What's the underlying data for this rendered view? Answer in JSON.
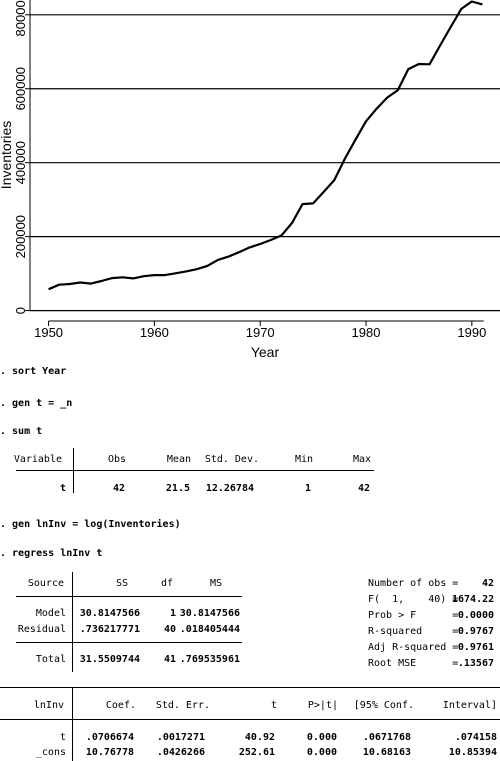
{
  "chart_data": {
    "type": "line",
    "xlabel": "Year",
    "ylabel": "Inventories",
    "xlim": [
      1949,
      1992
    ],
    "ylim": [
      -20000,
      840000
    ],
    "xticks": [
      "1950",
      "1960",
      "1970",
      "1980",
      "1990"
    ],
    "yticks": [
      "0",
      "200000",
      "400000",
      "600000",
      "800000"
    ],
    "grid": "horizontal",
    "x": [
      1950,
      1951,
      1952,
      1953,
      1954,
      1955,
      1956,
      1957,
      1958,
      1959,
      1960,
      1961,
      1962,
      1963,
      1964,
      1965,
      1966,
      1967,
      1968,
      1969,
      1970,
      1971,
      1972,
      1973,
      1974,
      1975,
      1976,
      1977,
      1978,
      1979,
      1980,
      1981,
      1982,
      1983,
      1984,
      1985,
      1986,
      1987,
      1988,
      1989,
      1990,
      1991
    ],
    "values": [
      58000,
      70000,
      72000,
      76000,
      73000,
      80000,
      88000,
      90000,
      87000,
      93000,
      96000,
      96000,
      101000,
      106000,
      112000,
      121000,
      137000,
      146000,
      158000,
      171000,
      180000,
      191000,
      203000,
      237000,
      288000,
      290000,
      321000,
      353000,
      411000,
      462000,
      512000,
      546000,
      576000,
      596000,
      653000,
      667000,
      666000,
      717000,
      767000,
      816000,
      836000,
      828000
    ]
  },
  "commands": {
    "sort": ". sort Year",
    "gen_t": ". gen t = _n",
    "sum_t": ". sum t",
    "gen_lninv": ". gen lnInv = log(Inventories)",
    "regress": ". regress lnInv t"
  },
  "sum_table": {
    "headers": [
      "Variable",
      "Obs",
      "Mean",
      "Std. Dev.",
      "Min",
      "Max"
    ],
    "row": [
      "t",
      "42",
      "21.5",
      "12.26784",
      "1",
      "42"
    ]
  },
  "anova": {
    "headers": [
      "Source",
      "SS",
      "df",
      "MS"
    ],
    "rows": [
      [
        "Model",
        "30.8147566",
        "1",
        "30.8147566"
      ],
      [
        "Residual",
        ".736217771",
        "40",
        ".018405444"
      ]
    ],
    "total": [
      "Total",
      "31.5509744",
      "41",
      ".769535961"
    ]
  },
  "fit_stats": [
    {
      "label": "Number of obs =",
      "value": "42"
    },
    {
      "label": "F(  1,    40) =",
      "value": "1674.22"
    },
    {
      "label": "Prob > F      =",
      "value": "0.0000"
    },
    {
      "label": "R-squared     =",
      "value": "0.9767"
    },
    {
      "label": "Adj R-squared =",
      "value": "0.9761"
    },
    {
      "label": "Root MSE      =",
      "value": ".13567"
    }
  ],
  "coef_table": {
    "headers": [
      "lnInv",
      "Coef.",
      "Std. Err.",
      "t",
      "P>|t|",
      "[95% Conf.",
      "Interval]"
    ],
    "rows": [
      [
        "t",
        ".0706674",
        ".0017271",
        "40.92",
        "0.000",
        ".0671768",
        ".074158"
      ],
      [
        "_cons",
        "10.76778",
        ".0426266",
        "252.61",
        "0.000",
        "10.68163",
        "10.85394"
      ]
    ]
  }
}
